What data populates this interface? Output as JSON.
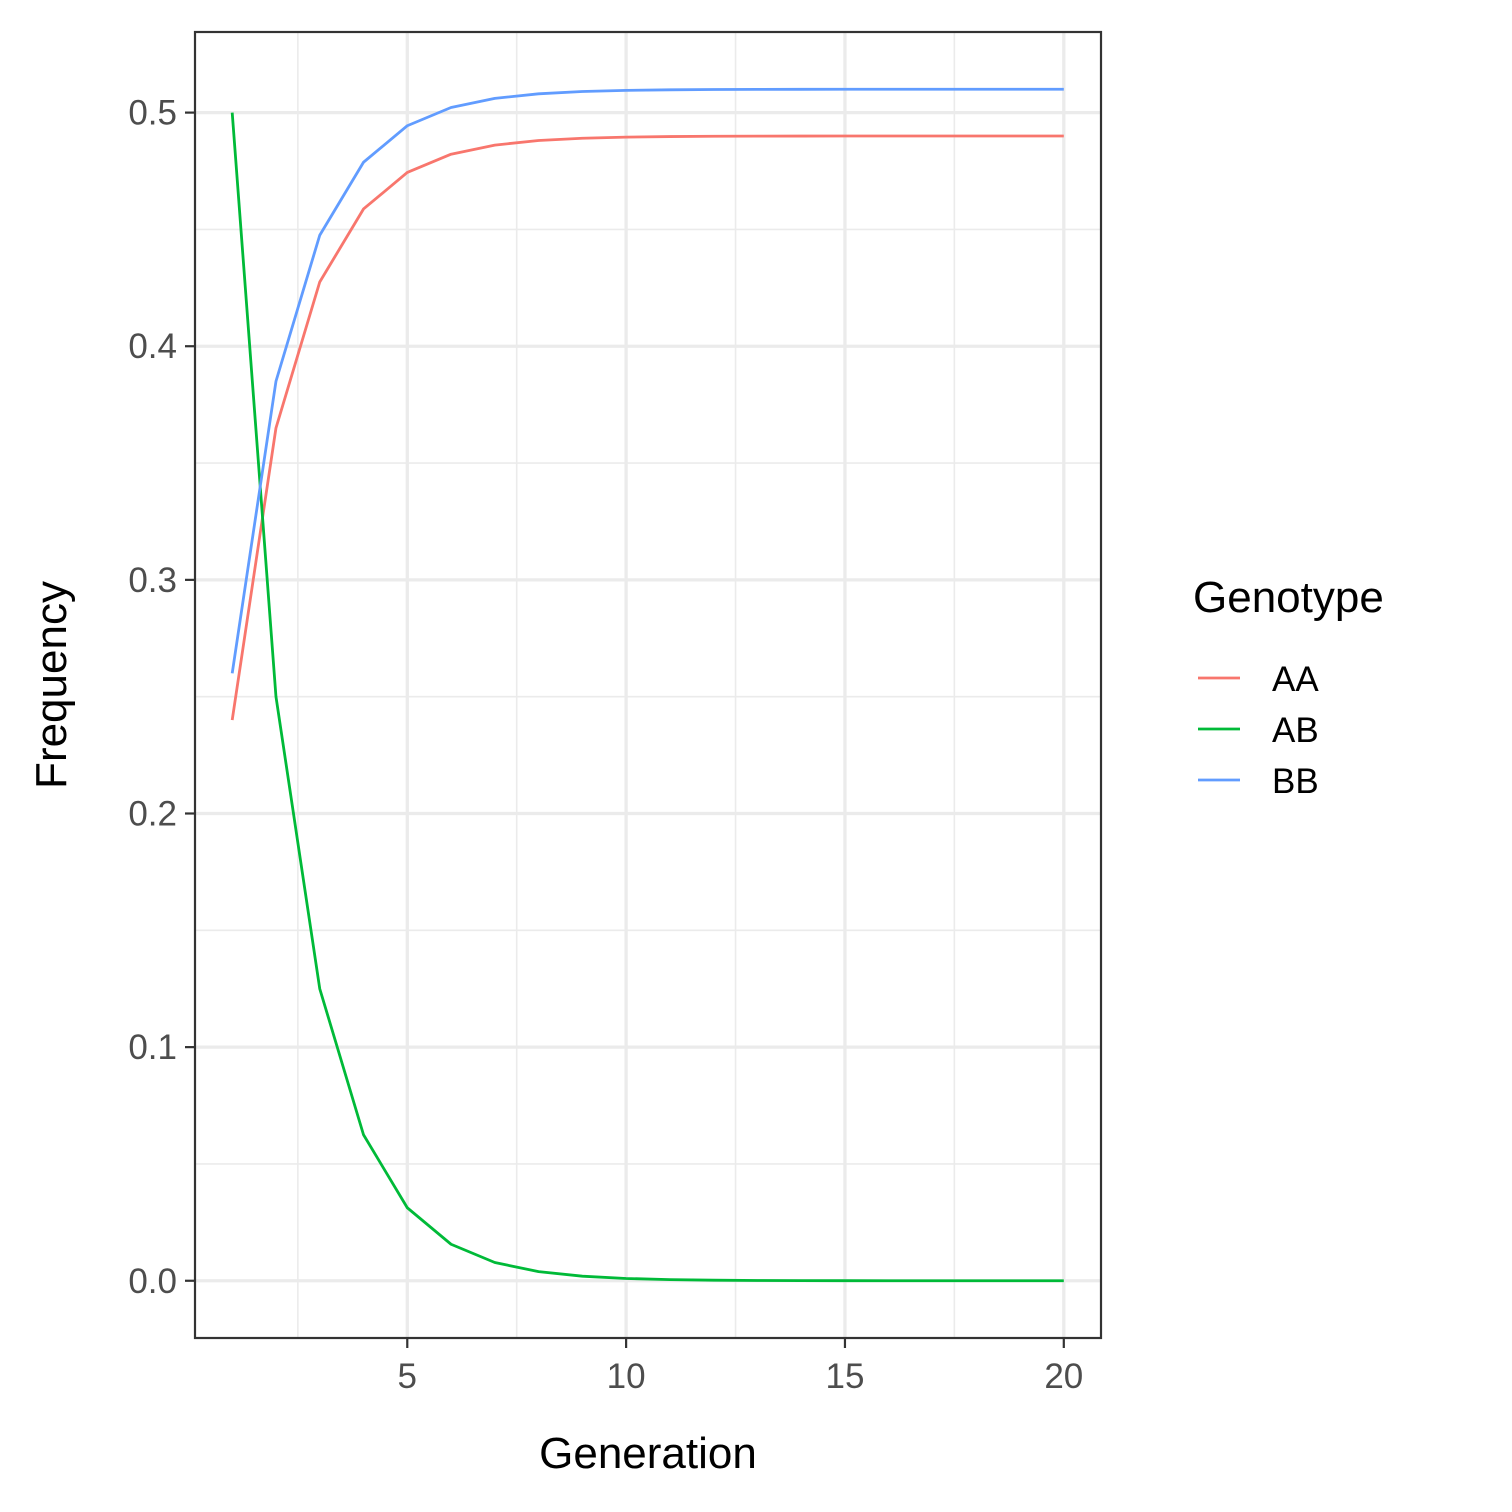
{
  "chart_data": {
    "type": "line",
    "xlabel": "Generation",
    "ylabel": "Frequency",
    "xlim": [
      0.15,
      20.85
    ],
    "ylim": [
      -0.0245,
      0.5345
    ],
    "x_ticks": [
      5,
      10,
      15,
      20
    ],
    "x_tick_labels": [
      "5",
      "10",
      "15",
      "20"
    ],
    "y_ticks": [
      0.0,
      0.1,
      0.2,
      0.3,
      0.4,
      0.5
    ],
    "y_tick_labels": [
      "0.0",
      "0.1",
      "0.2",
      "0.3",
      "0.4",
      "0.5"
    ],
    "x_minor_ticks": [
      2.5,
      7.5,
      12.5,
      17.5
    ],
    "y_minor_ticks": [
      0.05,
      0.15,
      0.25,
      0.35,
      0.45
    ],
    "grid": true,
    "legend": {
      "title": "Genotype",
      "position": "right"
    },
    "x": [
      1,
      2,
      3,
      4,
      5,
      6,
      7,
      8,
      9,
      10,
      11,
      12,
      13,
      14,
      15,
      16,
      17,
      18,
      19,
      20
    ],
    "series": [
      {
        "name": "AA",
        "color": "#F8766D",
        "values": [
          0.24,
          0.365,
          0.4275,
          0.45875,
          0.474375,
          0.482188,
          0.486094,
          0.488047,
          0.489023,
          0.489512,
          0.489756,
          0.489878,
          0.489939,
          0.489969,
          0.489985,
          0.489992,
          0.489996,
          0.489998,
          0.489999,
          0.49
        ]
      },
      {
        "name": "AB",
        "color": "#00BA38",
        "values": [
          0.5,
          0.25,
          0.125,
          0.0625,
          0.03125,
          0.015625,
          0.007813,
          0.003906,
          0.001953,
          0.000977,
          0.000488,
          0.000244,
          0.000122,
          6.1e-05,
          3.1e-05,
          1.5e-05,
          8e-06,
          4e-06,
          2e-06,
          1e-06
        ]
      },
      {
        "name": "BB",
        "color": "#619CFF",
        "values": [
          0.26,
          0.385,
          0.4475,
          0.47875,
          0.494375,
          0.502188,
          0.506094,
          0.508047,
          0.509023,
          0.509512,
          0.509756,
          0.509878,
          0.509939,
          0.509969,
          0.509985,
          0.509992,
          0.509996,
          0.509998,
          0.509999,
          0.51
        ]
      }
    ]
  }
}
